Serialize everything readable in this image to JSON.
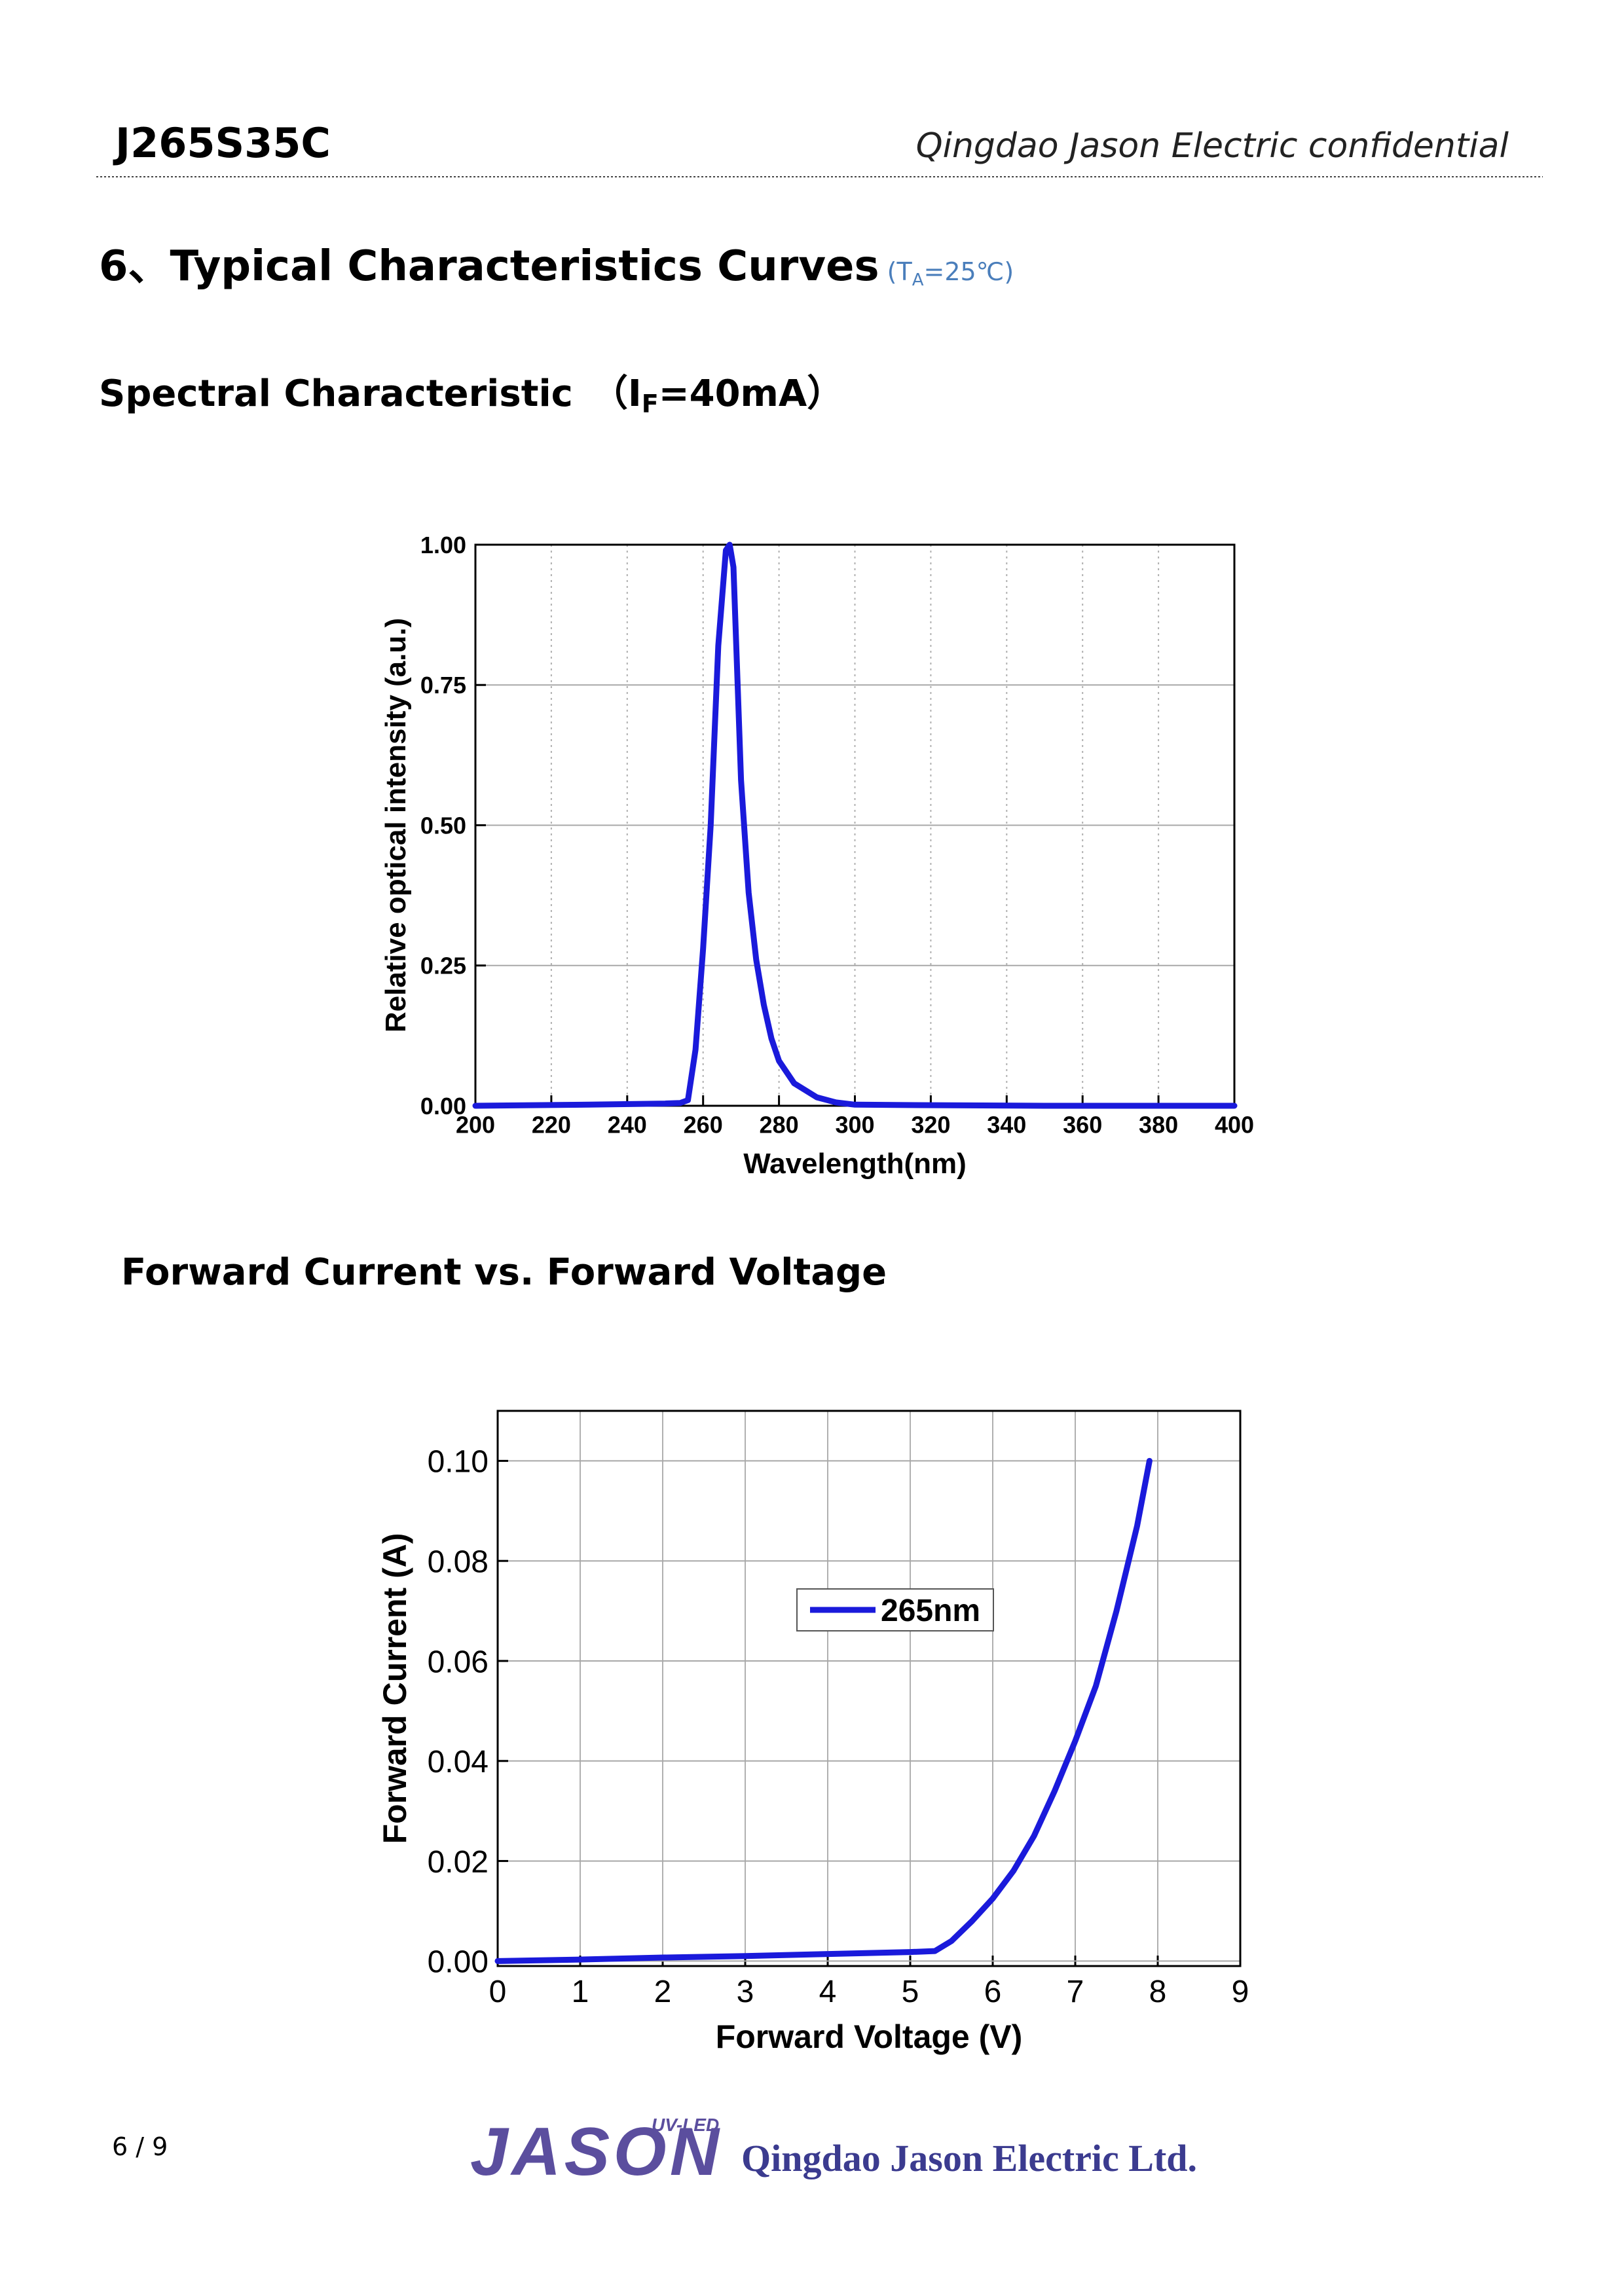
{
  "header": {
    "model": "J265S35C",
    "note": "Qingdao Jason Electric confidential"
  },
  "section": {
    "title": "6、Typical Characteristics Curves",
    "condition_parts": [
      " (T",
      "A",
      "=25℃)"
    ]
  },
  "spectral_title_parts": [
    "Spectral Characteristic　（I",
    "F",
    "=40mA）"
  ],
  "iv_title": "Forward Current vs. Forward Voltage",
  "chart_data": [
    {
      "type": "line",
      "xlabel": "Wavelength(nm)",
      "ylabel": "Relative optical intensity (a.u.)",
      "x": [
        200,
        230,
        250,
        254,
        256,
        258,
        260,
        262,
        264,
        266,
        267,
        268,
        270,
        272,
        274,
        276,
        278,
        280,
        284,
        290,
        295,
        300,
        320,
        350,
        400
      ],
      "values": [
        0,
        0.002,
        0.004,
        0.005,
        0.01,
        0.1,
        0.28,
        0.5,
        0.82,
        0.99,
        1.0,
        0.96,
        0.58,
        0.38,
        0.26,
        0.18,
        0.12,
        0.08,
        0.04,
        0.015,
        0.006,
        0.002,
        0.001,
        0,
        0
      ],
      "color": "#1a1adb",
      "xlim": [
        200,
        400
      ],
      "xticks": [
        200,
        220,
        240,
        260,
        280,
        300,
        320,
        340,
        360,
        380,
        400
      ],
      "ylim": [
        0,
        1.0
      ],
      "yticks": [
        {
          "value": 0,
          "label": "0.00"
        },
        0.25,
        {
          "value": 0.5,
          "label": "0.50"
        },
        0.75,
        {
          "value": 1.0,
          "label": "1.00"
        }
      ],
      "grid": true
    },
    {
      "type": "line",
      "xlabel": "Forward Voltage (V)",
      "ylabel": "Forward Current (A)",
      "x": [
        0,
        1,
        2,
        3,
        4,
        5,
        5.3,
        5.5,
        5.75,
        6,
        6.25,
        6.5,
        6.75,
        7,
        7.25,
        7.5,
        7.75,
        7.9
      ],
      "series": [
        {
          "name": "265nm",
          "color": "#1a1adb",
          "values": [
            0,
            0.0003,
            0.0007,
            0.001,
            0.0014,
            0.0018,
            0.002,
            0.004,
            0.008,
            0.0125,
            0.018,
            0.025,
            0.034,
            0.044,
            0.055,
            0.07,
            0.087,
            0.1
          ]
        }
      ],
      "xlim": [
        0,
        9
      ],
      "xticks": [
        0,
        1,
        2,
        3,
        4,
        5,
        6,
        7,
        8,
        9
      ],
      "ylim": [
        -0.001,
        0.11
      ],
      "yticks": [
        {
          "value": 0,
          "label": "0.00"
        },
        0.02,
        0.04,
        0.06,
        0.08,
        {
          "value": 0.1,
          "label": "0.10"
        }
      ],
      "grid": true,
      "legend": "upper center"
    }
  ],
  "footer": {
    "page": "6 / 9",
    "logo_tag": "UV-LED",
    "logo": "JASON",
    "company": "Qingdao Jason Electric Ltd."
  }
}
